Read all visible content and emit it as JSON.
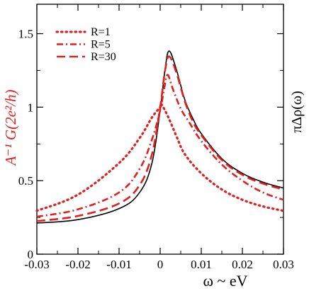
{
  "chart_data": {
    "type": "line",
    "xlabel": "ω ~ eV",
    "ylabel_left": "A⁻¹ G(2e²/h)",
    "ylabel_right": "πΔρ(ω)",
    "xlim": [
      -0.03,
      0.03
    ],
    "ylim": [
      0,
      1.7
    ],
    "xticks": [
      -0.03,
      -0.02,
      -0.01,
      0,
      0.01,
      0.02,
      0.03
    ],
    "xtick_labels": [
      "-0.03",
      "-0.02",
      "-0.01",
      "0",
      "0.01",
      "0.02",
      "0.03"
    ],
    "yticks": [
      0,
      0.5,
      1,
      1.5
    ],
    "ytick_labels": [
      "0",
      "0.5",
      "1",
      "1.5"
    ],
    "grid": false,
    "legend_position": "top-left",
    "series": [
      {
        "name": "",
        "color": "#000000",
        "dash": "solid",
        "peak": {
          "x": 0.0022,
          "y": 1.382
        },
        "points": [
          [
            -0.03,
            0.212
          ],
          [
            -0.02,
            0.235
          ],
          [
            -0.01,
            0.31
          ],
          [
            -0.005,
            0.42
          ],
          [
            -0.002,
            0.62
          ],
          [
            0.0,
            0.98
          ],
          [
            0.0012,
            1.26
          ],
          [
            0.0022,
            1.382
          ],
          [
            0.004,
            1.25
          ],
          [
            0.006,
            1.05
          ],
          [
            0.008,
            0.92
          ],
          [
            0.01,
            0.82
          ],
          [
            0.015,
            0.65
          ],
          [
            0.02,
            0.55
          ],
          [
            0.025,
            0.49
          ],
          [
            0.03,
            0.45
          ]
        ]
      },
      {
        "name": "R=1",
        "color": "#e02020",
        "dash": "dotted",
        "peak": {
          "x": 0.0003,
          "y": 1.02
        },
        "points": [
          [
            -0.03,
            0.295
          ],
          [
            -0.02,
            0.405
          ],
          [
            -0.01,
            0.62
          ],
          [
            -0.005,
            0.79
          ],
          [
            -0.002,
            0.93
          ],
          [
            0.0,
            1.0
          ],
          [
            0.0003,
            1.02
          ],
          [
            0.002,
            0.93
          ],
          [
            0.004,
            0.8
          ],
          [
            0.006,
            0.68
          ],
          [
            0.01,
            0.55
          ],
          [
            0.015,
            0.44
          ],
          [
            0.02,
            0.37
          ],
          [
            0.025,
            0.325
          ],
          [
            0.03,
            0.295
          ]
        ]
      },
      {
        "name": "R=5",
        "color": "#e02020",
        "dash": "dashdot",
        "peak": {
          "x": 0.0018,
          "y": 1.22
        },
        "points": [
          [
            -0.03,
            0.255
          ],
          [
            -0.02,
            0.305
          ],
          [
            -0.01,
            0.42
          ],
          [
            -0.005,
            0.58
          ],
          [
            -0.002,
            0.78
          ],
          [
            0.0,
            0.98
          ],
          [
            0.001,
            1.13
          ],
          [
            0.0018,
            1.22
          ],
          [
            0.003,
            1.13
          ],
          [
            0.005,
            0.99
          ],
          [
            0.007,
            0.9
          ],
          [
            0.01,
            0.77
          ],
          [
            0.015,
            0.61
          ],
          [
            0.02,
            0.5
          ],
          [
            0.025,
            0.42
          ],
          [
            0.03,
            0.37
          ]
        ]
      },
      {
        "name": "R=30",
        "color": "#e02020",
        "dash": "dashed",
        "peak": {
          "x": 0.0022,
          "y": 1.345
        },
        "points": [
          [
            -0.03,
            0.225
          ],
          [
            -0.02,
            0.26
          ],
          [
            -0.01,
            0.345
          ],
          [
            -0.005,
            0.47
          ],
          [
            -0.002,
            0.68
          ],
          [
            0.0,
            1.0
          ],
          [
            0.0012,
            1.25
          ],
          [
            0.0022,
            1.345
          ],
          [
            0.004,
            1.23
          ],
          [
            0.006,
            1.04
          ],
          [
            0.008,
            0.9
          ],
          [
            0.01,
            0.81
          ],
          [
            0.015,
            0.64
          ],
          [
            0.02,
            0.54
          ],
          [
            0.025,
            0.48
          ],
          [
            0.03,
            0.44
          ]
        ]
      }
    ]
  }
}
